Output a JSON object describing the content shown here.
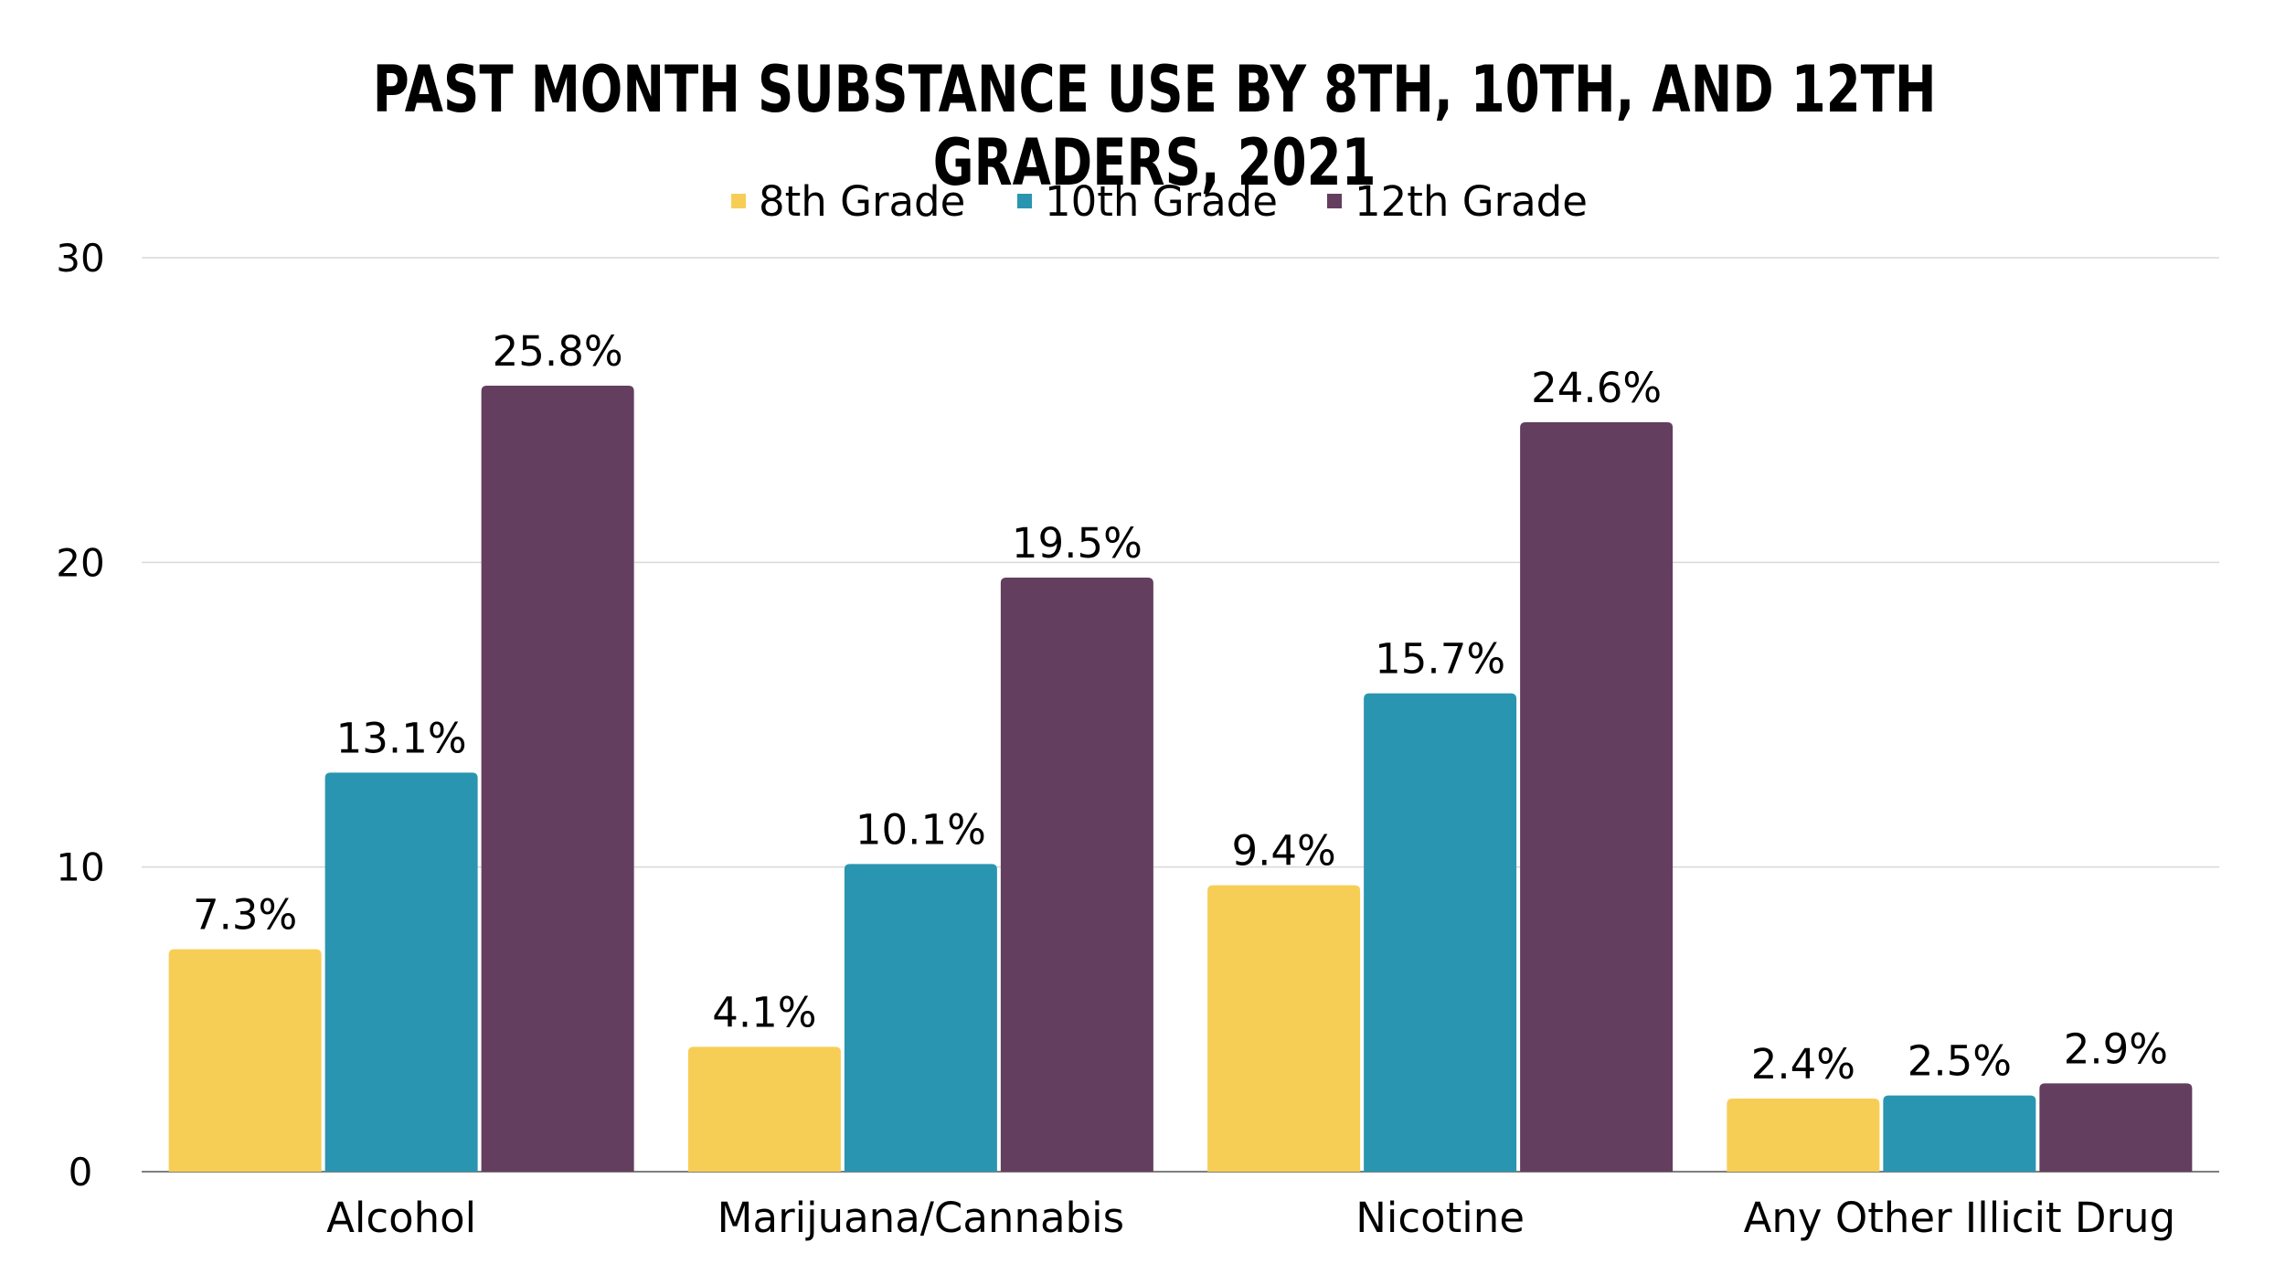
{
  "chart_data": {
    "type": "bar",
    "title": "PAST MONTH SUBSTANCE USE BY 8TH, 10TH, AND 12TH GRADERS, 2021",
    "xlabel": "",
    "ylabel": "",
    "ylim": [
      0,
      30
    ],
    "yticks": [
      "0",
      "10",
      "20",
      "30"
    ],
    "grid": true,
    "legend_position": "top-center",
    "categories": [
      "Alcohol",
      "Marijuana/Cannabis",
      "Nicotine",
      "Any Other Illicit Drug"
    ],
    "series": [
      {
        "name": "8th Grade",
        "color": "#F7CE55",
        "values": [
          7.3,
          4.1,
          9.4,
          2.4
        ],
        "labels": [
          "7.3%",
          "4.1%",
          "9.4%",
          "2.4%"
        ]
      },
      {
        "name": "10th Grade",
        "color": "#2A95B0",
        "values": [
          13.1,
          10.1,
          15.7,
          2.5
        ],
        "labels": [
          "13.1%",
          "10.1%",
          "15.7%",
          "2.5%"
        ]
      },
      {
        "name": "12th Grade",
        "color": "#633E5E",
        "values": [
          25.8,
          19.5,
          24.6,
          2.9
        ],
        "labels": [
          "25.8%",
          "19.5%",
          "24.6%",
          "2.9%"
        ]
      }
    ]
  }
}
